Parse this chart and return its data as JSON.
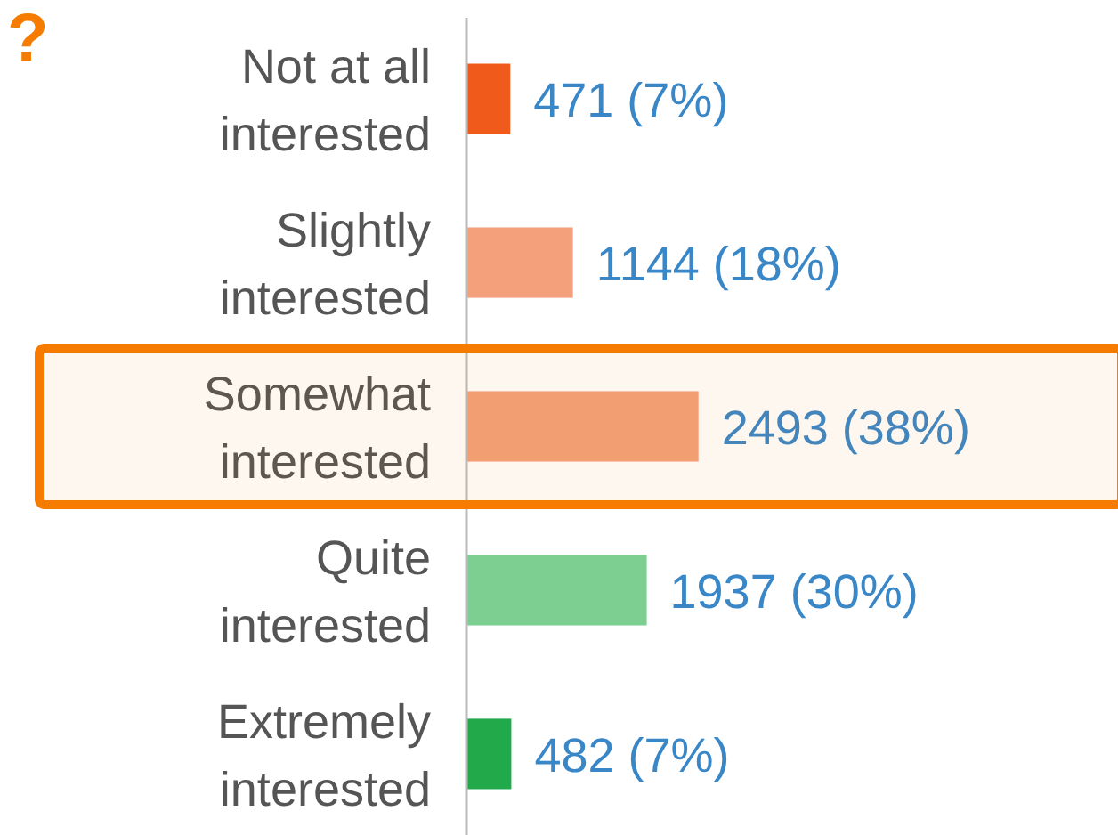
{
  "chart_data": {
    "type": "bar",
    "orientation": "horizontal",
    "title": "?",
    "categories": [
      "Not at all interested",
      "Slightly interested",
      "Somewhat interested",
      "Quite interested",
      "Extremely interested"
    ],
    "values": [
      471,
      1144,
      2493,
      1937,
      482
    ],
    "colors": [
      "#f05a1a",
      "#f4a07a",
      "#f4a07a",
      "#7dcf91",
      "#22aa4a"
    ],
    "value_labels": [
      "471 (7%)",
      "1144 (18%)",
      "2493 (38%)",
      "1937 (30%)",
      "482 (7%)"
    ],
    "xlim": [
      0,
      7000
    ],
    "tick_labels": "y",
    "bands": [
      {
        "axis": "y",
        "from": "Somewhat interested",
        "to": "Somewhat interested",
        "color": "#f57c00"
      }
    ]
  }
}
